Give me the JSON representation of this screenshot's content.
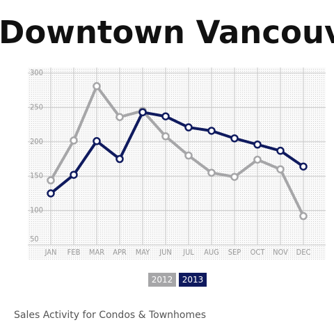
{
  "chart_data": {
    "type": "line",
    "title": "Downtown Vancouver",
    "subtitle": "Sales Activity for Condos & Townhomes",
    "categories": [
      "JAN",
      "FEB",
      "MAR",
      "APR",
      "MAY",
      "JUN",
      "JUL",
      "AUG",
      "SEP",
      "OCT",
      "NOV",
      "DEC"
    ],
    "series": [
      {
        "name": "2012",
        "color": "#a6a6a8",
        "values": [
          144,
          202,
          281,
          236,
          245,
          208,
          180,
          155,
          149,
          174,
          160,
          92
        ]
      },
      {
        "name": "2013",
        "color": "#0f1a5e",
        "values": [
          125,
          152,
          201,
          175,
          243,
          237,
          221,
          216,
          205,
          196,
          187,
          164
        ]
      }
    ],
    "ylim": [
      50,
      300
    ],
    "yticks": [
      50,
      100,
      150,
      200,
      250,
      300
    ],
    "grid": true
  }
}
